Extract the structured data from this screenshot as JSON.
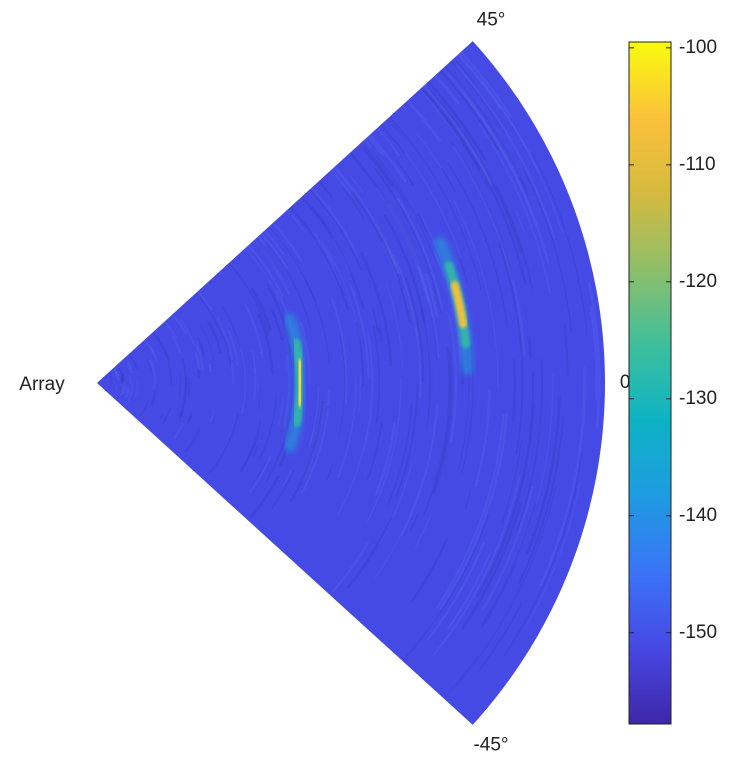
{
  "chart_data": {
    "type": "range-angle-map",
    "origin_label": "Array",
    "thetalim": [
      -45,
      45
    ],
    "thetaticks": [
      {
        "value": -45,
        "label": "-45°"
      },
      {
        "value": 0,
        "label": "0°"
      },
      {
        "value": 45,
        "label": "45°"
      }
    ],
    "rlim": [
      0,
      1
    ],
    "background_value": -151,
    "targets": [
      {
        "angle": 0,
        "range": 0.4,
        "value": -103
      },
      {
        "angle": 13,
        "range": 0.73,
        "value": -108
      }
    ],
    "clim": [
      -157.8,
      -99.5
    ],
    "cticks": [
      -150,
      -140,
      -130,
      -120,
      -110,
      -100
    ],
    "colormap": [
      "#3e26a8",
      "#4748e4",
      "#3a74f7",
      "#1e9be1",
      "#0db3c4",
      "#3ebf9c",
      "#8ebf6a",
      "#d5ba3f",
      "#fbc23a",
      "#f9fb0e"
    ]
  }
}
